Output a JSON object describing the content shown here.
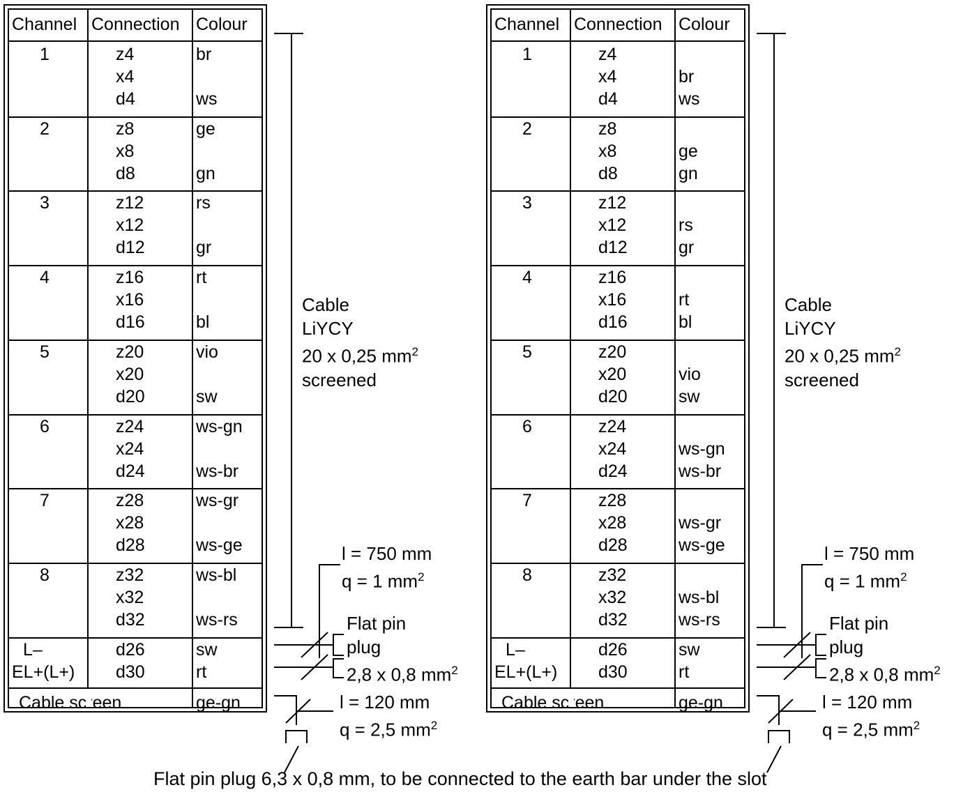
{
  "headers": {
    "channel": "Channel",
    "connection": "Connection",
    "colour": "Colour"
  },
  "left_table": {
    "rows": [
      {
        "channel": "1",
        "connections": [
          "z4",
          "x4",
          "d4"
        ],
        "colours": [
          "br",
          "",
          "ws"
        ]
      },
      {
        "channel": "2",
        "connections": [
          "z8",
          "x8",
          "d8"
        ],
        "colours": [
          "ge",
          "",
          "gn"
        ]
      },
      {
        "channel": "3",
        "connections": [
          "z12",
          "x12",
          "d12"
        ],
        "colours": [
          "rs",
          "",
          "gr"
        ]
      },
      {
        "channel": "4",
        "connections": [
          "z16",
          "x16",
          "d16"
        ],
        "colours": [
          "rt",
          "",
          "bl"
        ]
      },
      {
        "channel": "5",
        "connections": [
          "z20",
          "x20",
          "d20"
        ],
        "colours": [
          "vio",
          "",
          "sw"
        ]
      },
      {
        "channel": "6",
        "connections": [
          "z24",
          "x24",
          "d24"
        ],
        "colours": [
          "ws-gn",
          "",
          "ws-br"
        ]
      },
      {
        "channel": "7",
        "connections": [
          "z28",
          "x28",
          "d28"
        ],
        "colours": [
          "ws-gr",
          "",
          "ws-ge"
        ]
      },
      {
        "channel": "8",
        "connections": [
          "z32",
          "x32",
          "d32"
        ],
        "colours": [
          "ws-bl",
          "",
          "ws-rs"
        ]
      }
    ]
  },
  "right_table": {
    "rows": [
      {
        "channel": "1",
        "connections": [
          "z4",
          "x4",
          "d4"
        ],
        "colours": [
          "",
          "br",
          "ws"
        ]
      },
      {
        "channel": "2",
        "connections": [
          "z8",
          "x8",
          "d8"
        ],
        "colours": [
          "",
          "ge",
          "gn"
        ]
      },
      {
        "channel": "3",
        "connections": [
          "z12",
          "x12",
          "d12"
        ],
        "colours": [
          "",
          "rs",
          "gr"
        ]
      },
      {
        "channel": "4",
        "connections": [
          "z16",
          "x16",
          "d16"
        ],
        "colours": [
          "",
          "rt",
          "bl"
        ]
      },
      {
        "channel": "5",
        "connections": [
          "z20",
          "x20",
          "d20"
        ],
        "colours": [
          "",
          "vio",
          "sw"
        ]
      },
      {
        "channel": "6",
        "connections": [
          "z24",
          "x24",
          "d24"
        ],
        "colours": [
          "",
          "ws-gn",
          "ws-br"
        ]
      },
      {
        "channel": "7",
        "connections": [
          "z28",
          "x28",
          "d28"
        ],
        "colours": [
          "",
          "ws-gr",
          "ws-ge"
        ]
      },
      {
        "channel": "8",
        "connections": [
          "z32",
          "x32",
          "d32"
        ],
        "colours": [
          "",
          "ws-bl",
          "ws-rs"
        ]
      }
    ]
  },
  "power_rows": [
    {
      "channel": "L–",
      "connection": "d26",
      "colour": "sw"
    },
    {
      "channel": "EL+(L+)",
      "connection": "d30",
      "colour": "rt"
    }
  ],
  "screen_row": {
    "label": "Cable screen",
    "colour": "ge-gn"
  },
  "cable_label": {
    "line1": "Cable",
    "line2": "LiYCY",
    "line3": "20 x 0,25 mm",
    "sup": "2",
    "line4": "screened"
  },
  "wire_spec": {
    "length": "l = 750 mm",
    "section": "q = 1 mm",
    "sup": "2"
  },
  "flat_pin": {
    "line1": "Flat pin",
    "line2": "plug",
    "line3": "2,8 x 0,8 mm",
    "sup": "2"
  },
  "screen_spec": {
    "length": "l = 120 mm",
    "section": "q = 2,5 mm",
    "sup": "2"
  },
  "footer_note": "Flat pin plug 6,3 x 0,8 mm, to be connected to the earth bar under the slot"
}
